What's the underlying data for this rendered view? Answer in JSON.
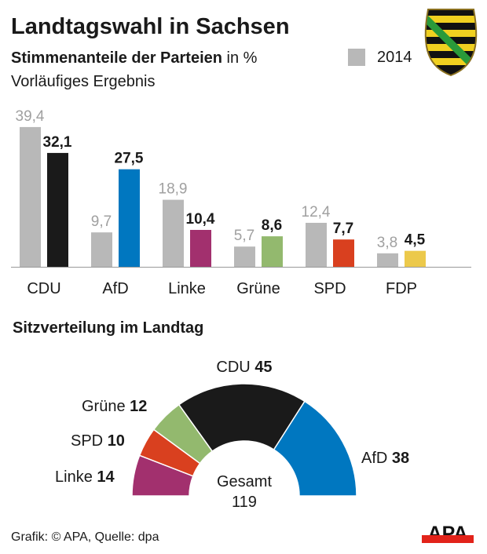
{
  "title": "Landtagswahl in Sachsen",
  "subtitle_bold": "Stimmenanteile der Parteien",
  "subtitle_rest": " in %",
  "note": "Vorläufiges Ergebnis",
  "legend_2014": "2014",
  "seats_title": "Sitzverteilung im Landtag",
  "total_label": "Gesamt",
  "total_value": "119",
  "source": "Grafik: © APA, Quelle: dpa",
  "logo": "APA",
  "chart_data": [
    {
      "type": "bar",
      "categories": [
        "CDU",
        "AfD",
        "Linke",
        "Grüne",
        "SPD",
        "FDP"
      ],
      "series": [
        {
          "name": "2014",
          "values": [
            "39,4",
            "9,7",
            "18,9",
            "5,7",
            "12,4",
            "3,8"
          ],
          "color": "#b8b8b8"
        },
        {
          "values": [
            "32,1",
            "27,5",
            "10,4",
            "8,6",
            "7,7",
            "4,5"
          ],
          "colors": [
            "#1a1a1a",
            "#0077c0",
            "#a2306e",
            "#93b96e",
            "#d9401f",
            "#ecc94b"
          ]
        }
      ]
    },
    {
      "type": "pie",
      "subtype": "hemicycle",
      "labels": [
        "Linke",
        "SPD",
        "Grüne",
        "CDU",
        "AfD"
      ],
      "values": [
        14,
        10,
        12,
        45,
        38
      ],
      "colors": [
        "#a2306e",
        "#d9401f",
        "#93b96e",
        "#1a1a1a",
        "#0077c0"
      ]
    }
  ]
}
